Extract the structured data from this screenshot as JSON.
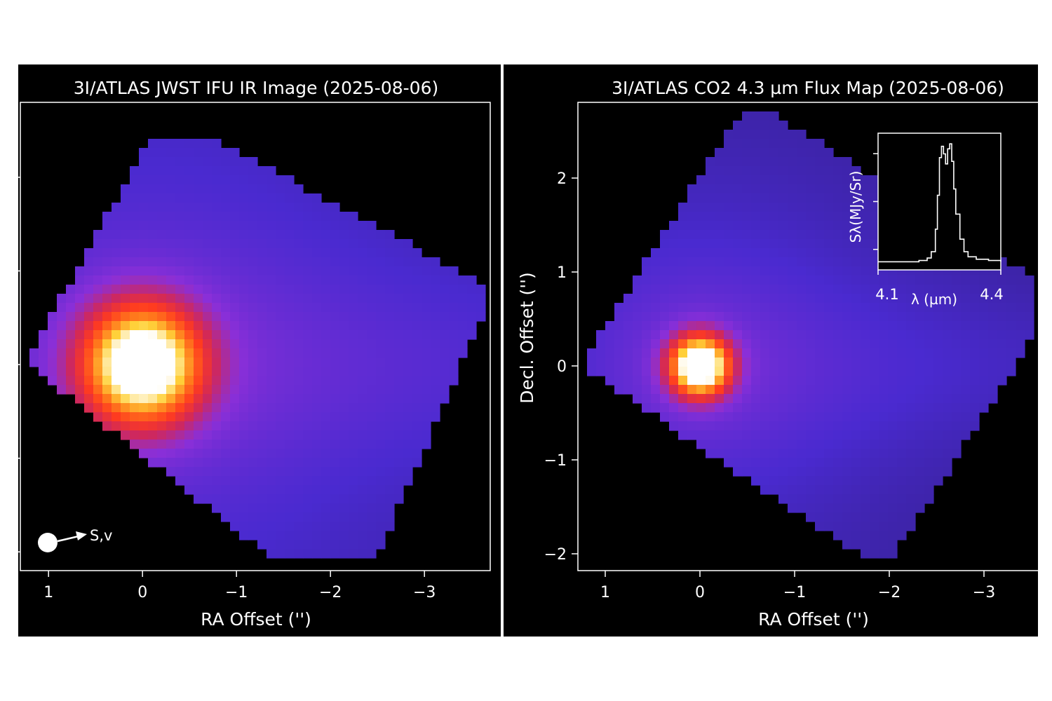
{
  "colors": {
    "panel_background": "#000000",
    "page_background": "#ffffff",
    "axes_color": "#ffffff",
    "text_color": "#ffffff",
    "colormap": [
      "#000000",
      "#2a1a6e",
      "#4a2ad0",
      "#8a2fd8",
      "#d0285a",
      "#ff3b1f",
      "#ff7a1c",
      "#ffd23a",
      "#ffffff"
    ]
  },
  "chart_data": [
    {
      "type": "heatmap",
      "title": "3I/ATLAS JWST IFU IR Image (2025-08-06)",
      "xlabel": "RA Offset ('')",
      "ylabel": "",
      "x_ticks": [
        1,
        0,
        -1,
        -2,
        -3
      ],
      "x_tick_labels": [
        "1",
        "0",
        "−1",
        "−2",
        "−3"
      ],
      "y_ticks": [
        -2,
        -1,
        0,
        1,
        2
      ],
      "y_tick_labels": [],
      "xlim": [
        1.3,
        -3.7
      ],
      "ylim": [
        -2.2,
        2.8
      ],
      "peak": {
        "x": 0,
        "y": 0
      },
      "annotation": {
        "text": "S,v",
        "marker": "filled-circle",
        "arrow": "right"
      },
      "grid": false
    },
    {
      "type": "heatmap",
      "title": "3I/ATLAS CO2 4.3 µm Flux Map (2025-08-06)",
      "xlabel": "RA Offset ('')",
      "ylabel": "Decl. Offset ('')",
      "x_ticks": [
        1,
        0,
        -1,
        -2,
        -3
      ],
      "x_tick_labels": [
        "1",
        "0",
        "−1",
        "−2",
        "−3"
      ],
      "y_ticks": [
        2,
        1,
        0,
        -1,
        -2
      ],
      "y_tick_labels": [
        "2",
        "1",
        "0",
        "−1",
        "−2"
      ],
      "xlim": [
        1.3,
        -3.6
      ],
      "ylim": [
        -2.2,
        2.8
      ],
      "peak": {
        "x": 0,
        "y": 0
      },
      "grid": false
    },
    {
      "type": "line",
      "title": "",
      "xlabel": "λ (µm)",
      "ylabel": "Sλ(MJy/Sr)",
      "x_tick_labels": [
        "4.1",
        "4.4"
      ],
      "xlim": [
        4.1,
        4.4
      ],
      "ylim": [
        0,
        1
      ],
      "series": [
        {
          "x": [
            4.1,
            4.15,
            4.2,
            4.22,
            4.23,
            4.24,
            4.245,
            4.25,
            4.255,
            4.26,
            4.265,
            4.27,
            4.275,
            4.28,
            4.285,
            4.29,
            4.3,
            4.31,
            4.32,
            4.34,
            4.37,
            4.4
          ],
          "y": [
            0.02,
            0.02,
            0.03,
            0.05,
            0.1,
            0.28,
            0.55,
            0.85,
            0.94,
            0.88,
            0.8,
            0.92,
            0.96,
            0.82,
            0.6,
            0.4,
            0.2,
            0.1,
            0.06,
            0.04,
            0.03,
            0.02
          ]
        }
      ]
    }
  ]
}
